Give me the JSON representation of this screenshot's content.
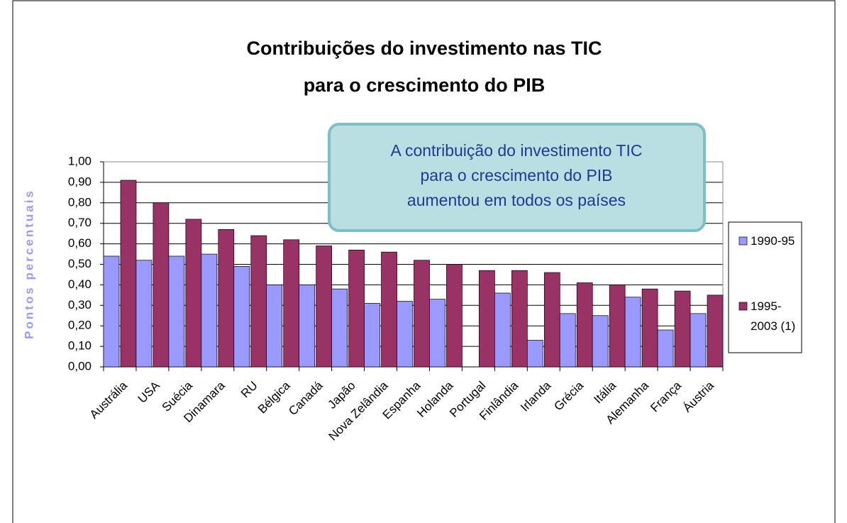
{
  "chart_data": {
    "type": "bar",
    "title": [
      "Contribuições do investimento nas TIC",
      "para o crescimento do PIB"
    ],
    "ylabel": "Pontos percentuais",
    "annotation": [
      "A contribuição do investimento TIC",
      "para o crescimento do PIB",
      "aumentou em todos os países"
    ],
    "categories": [
      "Austrália",
      "USA",
      "Suécia",
      "Dinamara",
      "RU",
      "Bélgica",
      "Canadá",
      "Japão",
      "Nova Zelândia",
      "Espanha",
      "Holanda",
      "Portugal",
      "Finlândia",
      "Irlanda",
      "Grécia",
      "Itália",
      "Alemanha",
      "França",
      "Áustria"
    ],
    "series": [
      {
        "name": "1990-95",
        "color": "#9999ff",
        "values": [
          0.54,
          0.52,
          0.54,
          0.55,
          0.49,
          0.4,
          0.4,
          0.38,
          0.31,
          0.32,
          0.33,
          null,
          0.36,
          0.13,
          0.26,
          0.25,
          0.34,
          0.18,
          0.26
        ]
      },
      {
        "name": "1995-2003 (1)",
        "color": "#993366",
        "values": [
          0.91,
          0.8,
          0.72,
          0.67,
          0.64,
          0.62,
          0.59,
          0.57,
          0.56,
          0.52,
          0.5,
          0.47,
          0.47,
          0.46,
          0.41,
          0.4,
          0.38,
          0.37,
          0.35
        ]
      }
    ],
    "ylim": [
      0,
      1
    ],
    "yticks": [
      {
        "value": 0,
        "label": "0,00"
      },
      {
        "value": 0.1,
        "label": "0,10"
      },
      {
        "value": 0.2,
        "label": "0,20"
      },
      {
        "value": 0.3,
        "label": "0,30"
      },
      {
        "value": 0.4,
        "label": "0,40"
      },
      {
        "value": 0.5,
        "label": "0,50"
      },
      {
        "value": 0.6,
        "label": "0,60"
      },
      {
        "value": 0.7,
        "label": "0,70"
      },
      {
        "value": 0.8,
        "label": "0,80"
      },
      {
        "value": 0.9,
        "label": "0,90"
      },
      {
        "value": 1,
        "label": "1,00"
      }
    ],
    "grid": true,
    "legend": "right"
  }
}
